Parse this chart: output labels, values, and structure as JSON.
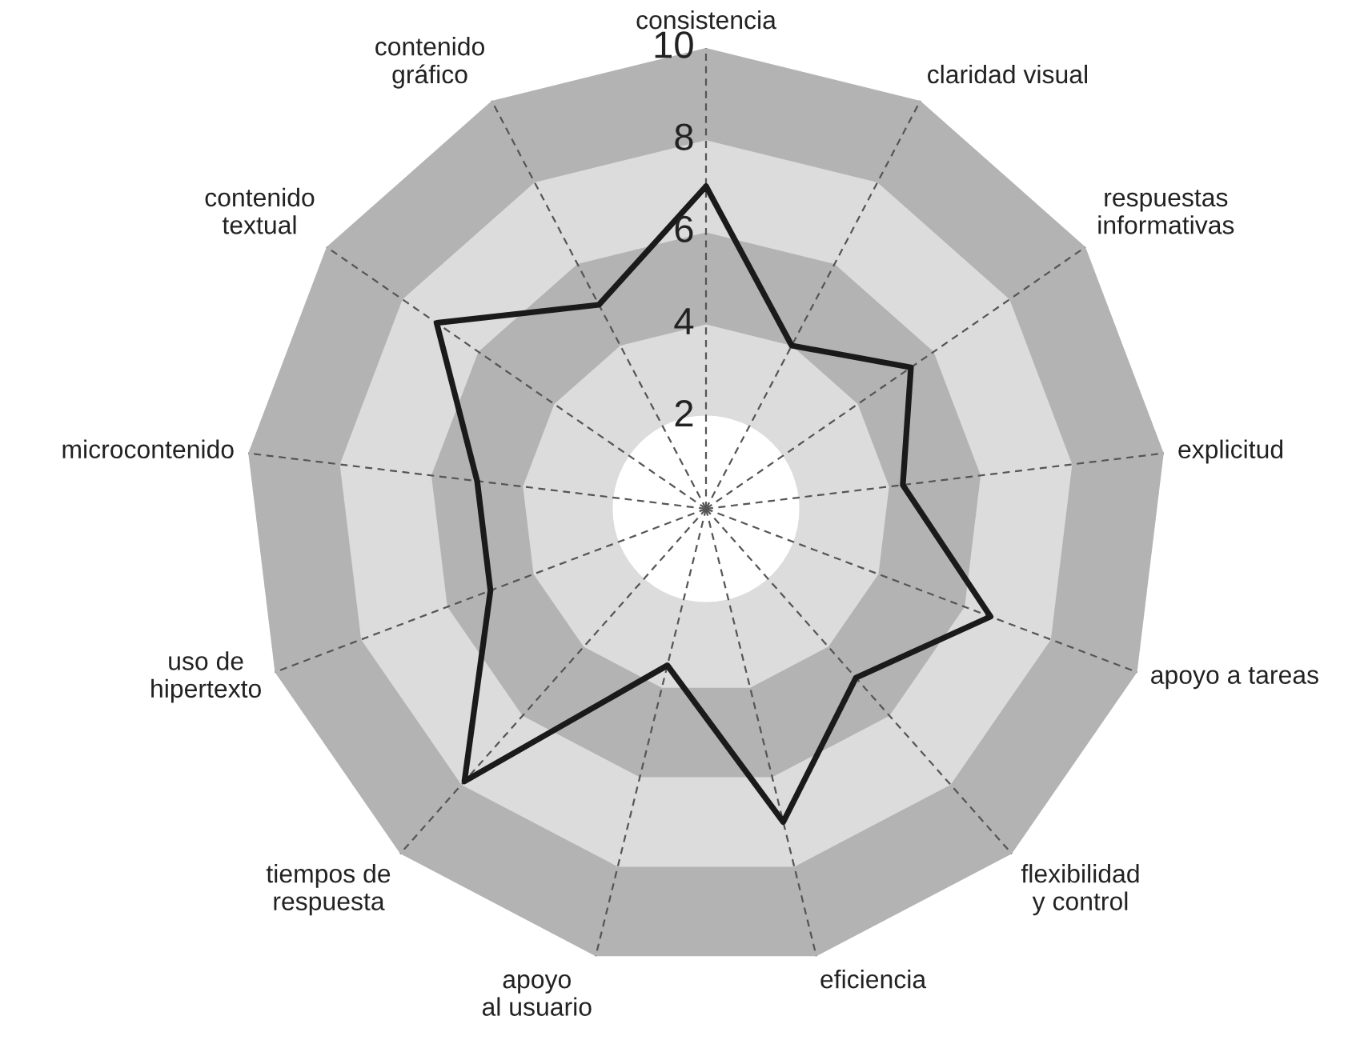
{
  "chart_data": {
    "type": "radar",
    "categories": [
      "consistencia",
      "claridad visual",
      "respuestas\ninformativas",
      "explicitud",
      "apoyo a tareas",
      "flexibilidad\ny control",
      "eficiencia",
      "apoyo\nal usuario",
      "tiempos de\nrespuesta",
      "uso de\nhipertexto",
      "microcontenido",
      "contenido\ntextual",
      "contenido\ngráfico"
    ],
    "series": [
      {
        "color": "#1a1a1a",
        "values": [
          7.0,
          4.0,
          5.4,
          4.3,
          6.6,
          4.9,
          7.0,
          3.5,
          7.9,
          5.0,
          5.0,
          7.1,
          5.0
        ]
      }
    ],
    "ylim": [
      0,
      10
    ],
    "yticks": [
      2,
      4,
      6,
      8,
      10
    ],
    "grid": true
  }
}
